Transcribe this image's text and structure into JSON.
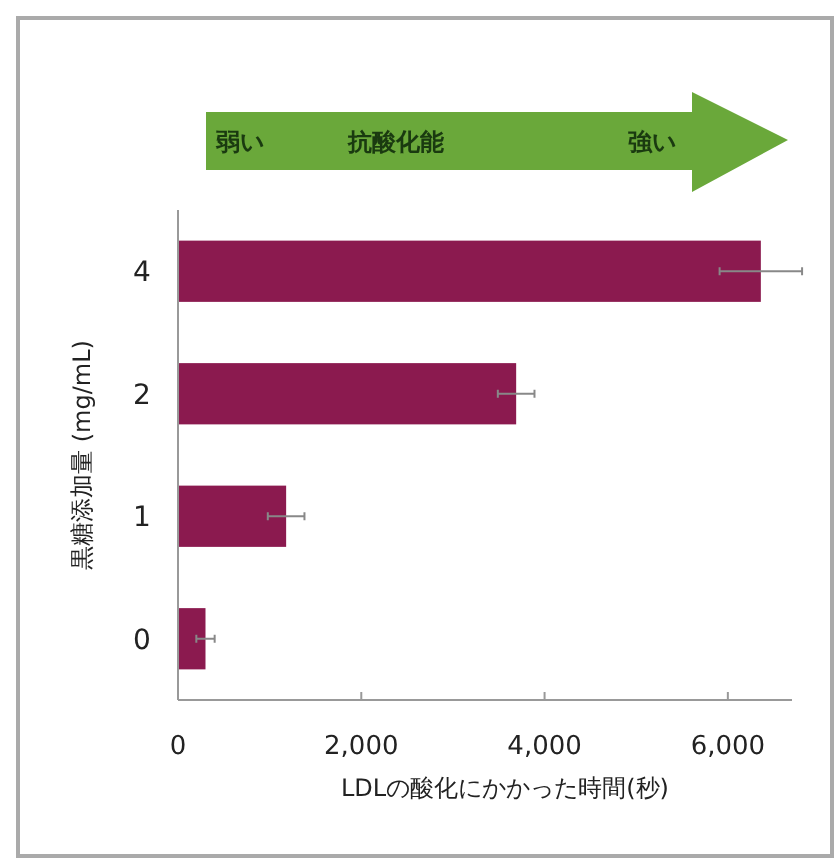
{
  "chart_data": {
    "type": "bar",
    "orientation": "horizontal",
    "categories": [
      "4",
      "2",
      "1",
      "0"
    ],
    "values": [
      6360,
      3690,
      1180,
      300
    ],
    "errors": [
      450,
      200,
      200,
      100
    ],
    "color": "#8b1a4f",
    "xlim": [
      0,
      6700
    ],
    "xticks": [
      {
        "value": 0,
        "label": "0"
      },
      {
        "value": 2000,
        "label": "2,000"
      },
      {
        "value": 4000,
        "label": "4,000"
      },
      {
        "value": 6000,
        "label": "6,000"
      }
    ],
    "xlabel": "LDLの酸化にかかった時間(秒)",
    "ylabel": "黒糖添加量 (mg/mL)",
    "annotations": [
      "弱い",
      "抗酸化能",
      "強い"
    ],
    "grid": false
  }
}
